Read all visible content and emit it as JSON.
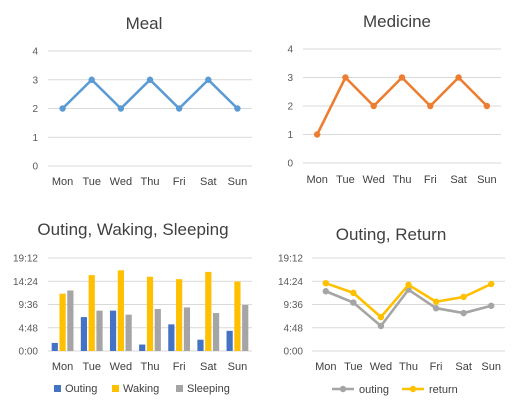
{
  "chart_data": [
    {
      "id": "meal",
      "type": "line",
      "title": "Meal",
      "categories": [
        "Mon",
        "Tue",
        "Wed",
        "Thu",
        "Fri",
        "Sat",
        "Sun"
      ],
      "yticks": [
        "0",
        "1",
        "2",
        "3",
        "4"
      ],
      "ylim": [
        0,
        4
      ],
      "grid": true,
      "series": [
        {
          "values": [
            2,
            3,
            2,
            3,
            2,
            3,
            2
          ],
          "color": "#5b9bd5"
        }
      ]
    },
    {
      "id": "medicine",
      "type": "line",
      "title": "Medicine",
      "categories": [
        "Mon",
        "Tue",
        "Wed",
        "Thu",
        "Fri",
        "Sat",
        "Sun"
      ],
      "yticks": [
        "0",
        "1",
        "2",
        "3",
        "4"
      ],
      "ylim": [
        0,
        4
      ],
      "grid": true,
      "series": [
        {
          "values": [
            1,
            3,
            2,
            3,
            2,
            3,
            2
          ],
          "color": "#ed7d31"
        }
      ]
    },
    {
      "id": "ows",
      "type": "bar",
      "title": "Outing, Waking, Sleeping",
      "categories": [
        "Mon",
        "Tue",
        "Wed",
        "Thu",
        "Fri",
        "Sat",
        "Sun"
      ],
      "yticks": [
        "0:00",
        "4:48",
        "9:36",
        "14:24",
        "19:12"
      ],
      "ylim": [
        "0:00",
        "19:12"
      ],
      "grid": true,
      "legend": "bottom",
      "series": [
        {
          "name": "Outing",
          "values": [
            "1:40",
            "7:00",
            "8:20",
            "1:20",
            "5:30",
            "2:20",
            "4:10"
          ],
          "color": "#4472c4"
        },
        {
          "name": "Waking",
          "values": [
            "11:50",
            "15:40",
            "16:40",
            "15:20",
            "14:50",
            "16:20",
            "14:20"
          ],
          "color": "#ffc000"
        },
        {
          "name": "Sleeping",
          "values": [
            "12:30",
            "8:20",
            "7:30",
            "8:40",
            "9:00",
            "7:50",
            "9:30"
          ],
          "color": "#a5a5a5"
        }
      ]
    },
    {
      "id": "or",
      "type": "line",
      "title": "Outing, Return",
      "categories": [
        "Mon",
        "Tue",
        "Wed",
        "Thu",
        "Fri",
        "Sat",
        "Sun"
      ],
      "yticks": [
        "0:00",
        "4:48",
        "9:36",
        "14:24",
        "19:12"
      ],
      "ylim": [
        "0:00",
        "19:12"
      ],
      "grid": true,
      "legend": "bottom",
      "series": [
        {
          "name": "outing",
          "values": [
            "12:20",
            "10:00",
            "5:10",
            "12:40",
            "8:50",
            "7:50",
            "9:20"
          ],
          "color": "#a5a5a5"
        },
        {
          "name": "return",
          "values": [
            "14:00",
            "12:00",
            "7:00",
            "13:40",
            "10:10",
            "11:10",
            "13:50"
          ],
          "color": "#ffc000"
        }
      ]
    }
  ]
}
